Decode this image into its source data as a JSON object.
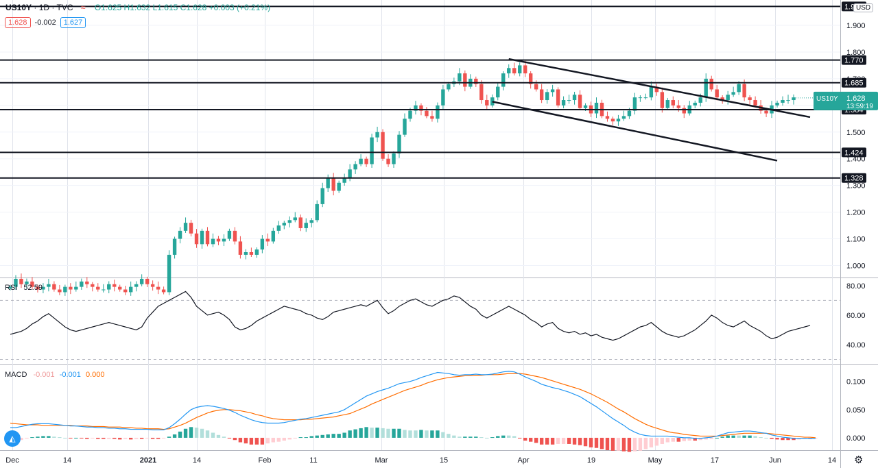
{
  "header": {
    "symbol": "US10Y",
    "interval": "1D",
    "exchange": "TVC",
    "o": "O1.625",
    "h": "H1.632",
    "l": "L1.615",
    "c": "C1.628",
    "chg": "+0.003 (+0.21%)",
    "sell": "1.628",
    "spread": "-0.002",
    "buy": "1.627"
  },
  "currency": "USD",
  "panes": {
    "rsi": {
      "label": "RSI",
      "value": "52.59"
    },
    "macd": {
      "label": "MACD",
      "hist": "-0.001",
      "macd": "-0.001",
      "signal": "0.000"
    }
  },
  "colors": {
    "up": "#26a69a",
    "down": "#ef5350",
    "macd_line": "#2196f3",
    "signal_line": "#ff6d00",
    "hist_up_strong": "#26a69a",
    "hist_up_weak": "#b2dfdb",
    "hist_down_strong": "#ef5350",
    "hist_down_weak": "#ffcdd2"
  },
  "icons": {
    "settings": "gear-icon",
    "logo": "tradingview-logo"
  },
  "chart_data": [
    {
      "type": "candlestick",
      "title": "US10Y · 1D · TVC",
      "x_ticks": [
        "Dec",
        "14",
        "2021",
        "14",
        "Feb",
        "11",
        "Mar",
        "15",
        "Apr",
        "19",
        "May",
        "17",
        "Jun",
        "14"
      ],
      "y_ticks": [
        "1.000",
        "1.100",
        "1.200",
        "1.300",
        "1.400",
        "1.500",
        "1.600",
        "1.700",
        "1.800",
        "1.900"
      ],
      "ylim": [
        0.955,
        1.995
      ],
      "last_price": "1.628",
      "countdown": "13:59:19",
      "levels": [
        "1.770",
        "1.685",
        "1.584",
        "1.424",
        "1.328",
        "1.971"
      ],
      "closes": [
        0.92,
        0.95,
        0.93,
        0.94,
        0.92,
        0.91,
        0.92,
        0.93,
        0.91,
        0.9,
        0.92,
        0.91,
        0.92,
        0.94,
        0.93,
        0.92,
        0.91,
        0.91,
        0.93,
        0.92,
        0.91,
        0.9,
        0.92,
        0.93,
        0.95,
        0.93,
        0.92,
        0.91,
        0.9,
        1.04,
        1.1,
        1.13,
        1.16,
        1.12,
        1.08,
        1.13,
        1.08,
        1.1,
        1.09,
        1.1,
        1.13,
        1.09,
        1.04,
        1.05,
        1.04,
        1.06,
        1.1,
        1.09,
        1.13,
        1.15,
        1.16,
        1.17,
        1.18,
        1.14,
        1.16,
        1.17,
        1.23,
        1.29,
        1.33,
        1.28,
        1.31,
        1.33,
        1.36,
        1.38,
        1.4,
        1.38,
        1.48,
        1.5,
        1.4,
        1.38,
        1.42,
        1.49,
        1.55,
        1.58,
        1.6,
        1.58,
        1.56,
        1.55,
        1.6,
        1.66,
        1.68,
        1.69,
        1.72,
        1.67,
        1.7,
        1.68,
        1.62,
        1.6,
        1.63,
        1.67,
        1.72,
        1.74,
        1.72,
        1.75,
        1.72,
        1.68,
        1.66,
        1.62,
        1.65,
        1.66,
        1.6,
        1.62,
        1.62,
        1.64,
        1.59,
        1.6,
        1.57,
        1.61,
        1.56,
        1.55,
        1.54,
        1.55,
        1.56,
        1.58,
        1.63,
        1.63,
        1.63,
        1.67,
        1.65,
        1.59,
        1.62,
        1.6,
        1.59,
        1.57,
        1.6,
        1.61,
        1.63,
        1.7,
        1.66,
        1.63,
        1.62,
        1.64,
        1.65,
        1.68,
        1.63,
        1.62,
        1.6,
        1.58,
        1.57,
        1.6,
        1.61,
        1.62,
        1.62,
        1.63
      ]
    },
    {
      "type": "line",
      "title": "RSI",
      "y_ticks": [
        "40.00",
        "60.00",
        "80.00"
      ],
      "ylim": [
        27,
        85
      ],
      "guide_levels": [
        70,
        30
      ],
      "values": [
        47,
        48,
        49,
        51,
        54,
        56,
        59,
        61,
        58,
        55,
        52,
        50,
        49,
        50,
        51,
        52,
        53,
        54,
        55,
        54,
        53,
        52,
        51,
        50,
        52,
        58,
        62,
        66,
        68,
        70,
        72,
        74,
        76,
        72,
        66,
        63,
        60,
        61,
        62,
        60,
        57,
        52,
        50,
        51,
        53,
        56,
        58,
        60,
        62,
        64,
        66,
        65,
        64,
        63,
        61,
        60,
        58,
        57,
        59,
        62,
        63,
        64,
        65,
        66,
        67,
        66,
        68,
        70,
        65,
        61,
        63,
        66,
        68,
        70,
        71,
        69,
        67,
        66,
        68,
        70,
        71,
        73,
        72,
        69,
        66,
        64,
        60,
        58,
        60,
        62,
        64,
        66,
        64,
        62,
        60,
        57,
        55,
        52,
        54,
        55,
        51,
        49,
        48,
        49,
        47,
        48,
        46,
        47,
        45,
        44,
        43,
        44,
        46,
        48,
        50,
        52,
        53,
        55,
        52,
        49,
        47,
        46,
        45,
        46,
        48,
        50,
        53,
        56,
        60,
        58,
        55,
        53,
        52,
        54,
        56,
        53,
        51,
        49,
        46,
        44,
        45,
        47,
        49,
        50,
        51,
        52,
        53
      ]
    },
    {
      "type": "line",
      "title": "MACD",
      "y_ticks": [
        "0.000",
        "0.050",
        "0.100"
      ],
      "ylim": [
        -0.022,
        0.13
      ],
      "series": [
        {
          "name": "MACD",
          "values": [
            0.018,
            0.018,
            0.02,
            0.022,
            0.024,
            0.025,
            0.025,
            0.025,
            0.024,
            0.023,
            0.022,
            0.021,
            0.021,
            0.02,
            0.019,
            0.019,
            0.018,
            0.018,
            0.017,
            0.017,
            0.016,
            0.016,
            0.015,
            0.015,
            0.015,
            0.015,
            0.014,
            0.014,
            0.014,
            0.018,
            0.025,
            0.033,
            0.042,
            0.05,
            0.054,
            0.056,
            0.057,
            0.056,
            0.054,
            0.052,
            0.049,
            0.045,
            0.04,
            0.036,
            0.032,
            0.029,
            0.027,
            0.026,
            0.026,
            0.026,
            0.027,
            0.029,
            0.031,
            0.033,
            0.034,
            0.036,
            0.038,
            0.04,
            0.042,
            0.044,
            0.046,
            0.05,
            0.056,
            0.062,
            0.068,
            0.074,
            0.078,
            0.082,
            0.085,
            0.088,
            0.092,
            0.096,
            0.098,
            0.1,
            0.103,
            0.107,
            0.11,
            0.113,
            0.116,
            0.115,
            0.114,
            0.112,
            0.111,
            0.112,
            0.112,
            0.113,
            0.112,
            0.112,
            0.113,
            0.115,
            0.117,
            0.118,
            0.117,
            0.113,
            0.108,
            0.104,
            0.1,
            0.095,
            0.092,
            0.089,
            0.087,
            0.084,
            0.081,
            0.077,
            0.073,
            0.067,
            0.061,
            0.055,
            0.048,
            0.041,
            0.034,
            0.028,
            0.022,
            0.015,
            0.01,
            0.006,
            0.004,
            0.003,
            0.003,
            0.003,
            0.003,
            0.002,
            0.001,
            0.0,
            0.0,
            -0.001,
            -0.001,
            0.0,
            0.001,
            0.003,
            0.006,
            0.009,
            0.01,
            0.011,
            0.012,
            0.012,
            0.011,
            0.009,
            0.008,
            0.005,
            0.003,
            0.001,
            0.0,
            -0.001,
            -0.001,
            -0.001,
            -0.001,
            -0.001
          ]
        },
        {
          "name": "Signal",
          "values": [
            0.026,
            0.025,
            0.024,
            0.023,
            0.023,
            0.023,
            0.022,
            0.022,
            0.022,
            0.022,
            0.022,
            0.022,
            0.021,
            0.021,
            0.021,
            0.02,
            0.02,
            0.02,
            0.019,
            0.019,
            0.019,
            0.018,
            0.018,
            0.017,
            0.017,
            0.016,
            0.016,
            0.016,
            0.015,
            0.016,
            0.019,
            0.022,
            0.026,
            0.031,
            0.036,
            0.04,
            0.044,
            0.047,
            0.049,
            0.05,
            0.05,
            0.049,
            0.048,
            0.046,
            0.044,
            0.041,
            0.039,
            0.036,
            0.034,
            0.033,
            0.032,
            0.032,
            0.032,
            0.032,
            0.033,
            0.033,
            0.034,
            0.035,
            0.036,
            0.037,
            0.039,
            0.041,
            0.043,
            0.047,
            0.051,
            0.055,
            0.06,
            0.064,
            0.068,
            0.072,
            0.076,
            0.08,
            0.084,
            0.087,
            0.09,
            0.093,
            0.097,
            0.1,
            0.103,
            0.105,
            0.107,
            0.108,
            0.109,
            0.11,
            0.11,
            0.111,
            0.111,
            0.112,
            0.112,
            0.112,
            0.113,
            0.114,
            0.114,
            0.114,
            0.113,
            0.111,
            0.109,
            0.107,
            0.104,
            0.101,
            0.098,
            0.095,
            0.092,
            0.089,
            0.086,
            0.082,
            0.078,
            0.073,
            0.068,
            0.063,
            0.057,
            0.051,
            0.046,
            0.04,
            0.034,
            0.029,
            0.024,
            0.02,
            0.017,
            0.014,
            0.011,
            0.009,
            0.008,
            0.006,
            0.005,
            0.004,
            0.003,
            0.003,
            0.003,
            0.003,
            0.004,
            0.005,
            0.006,
            0.007,
            0.008,
            0.008,
            0.008,
            0.008,
            0.008,
            0.007,
            0.006,
            0.005,
            0.004,
            0.003,
            0.002,
            0.001,
            0.001,
            0.0
          ]
        }
      ]
    }
  ]
}
